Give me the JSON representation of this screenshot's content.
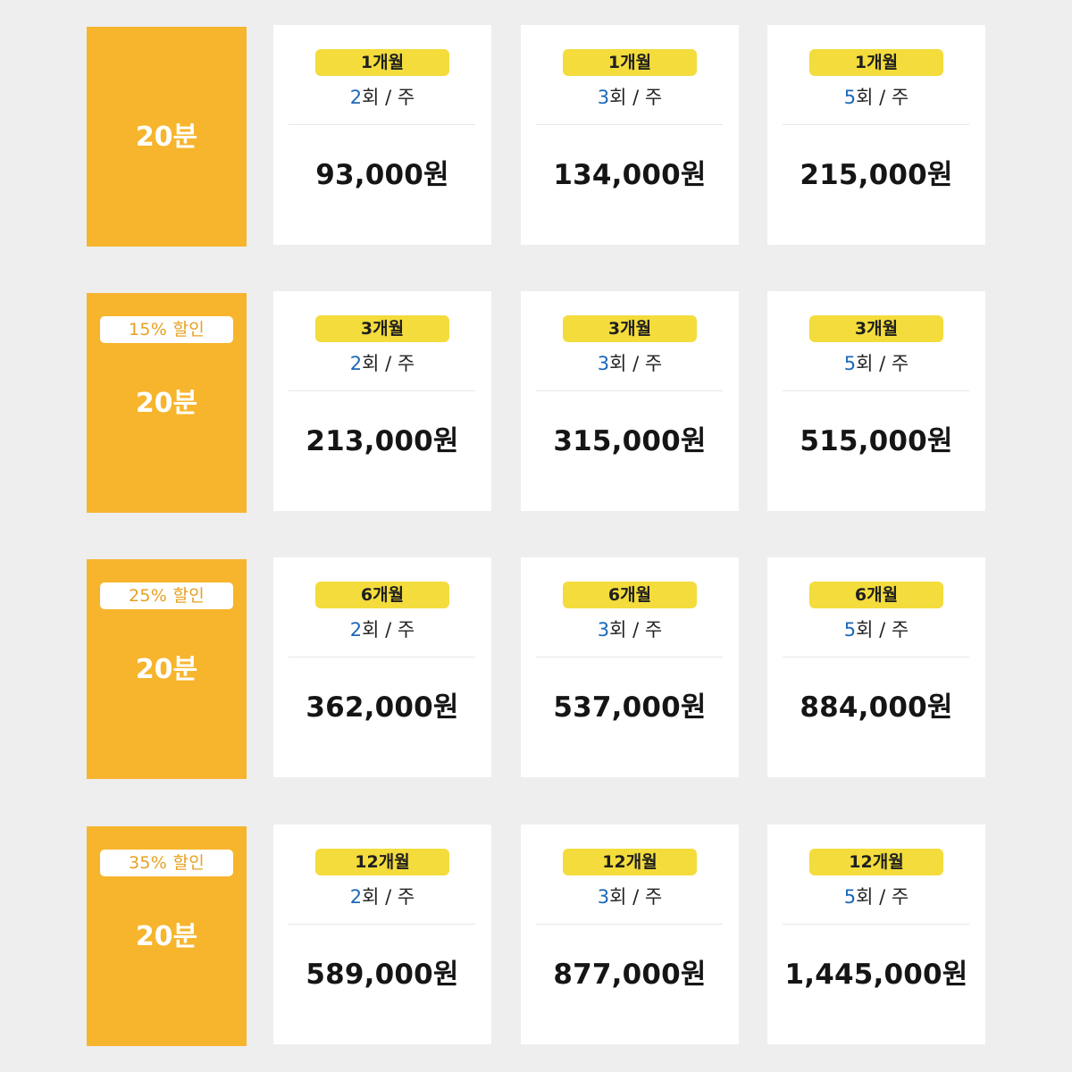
{
  "rows": [
    {
      "discount": "",
      "duration": "20분",
      "cards": [
        {
          "period": "1개월",
          "freq_num": "2",
          "freq_suffix": "회 / 주",
          "price": "93,000원"
        },
        {
          "period": "1개월",
          "freq_num": "3",
          "freq_suffix": "회 / 주",
          "price": "134,000원"
        },
        {
          "period": "1개월",
          "freq_num": "5",
          "freq_suffix": "회 / 주",
          "price": "215,000원"
        }
      ]
    },
    {
      "discount": "15% 할인",
      "duration": "20분",
      "cards": [
        {
          "period": "3개월",
          "freq_num": "2",
          "freq_suffix": "회 / 주",
          "price": "213,000원"
        },
        {
          "period": "3개월",
          "freq_num": "3",
          "freq_suffix": "회 / 주",
          "price": "315,000원"
        },
        {
          "period": "3개월",
          "freq_num": "5",
          "freq_suffix": "회 / 주",
          "price": "515,000원"
        }
      ]
    },
    {
      "discount": "25% 할인",
      "duration": "20분",
      "cards": [
        {
          "period": "6개월",
          "freq_num": "2",
          "freq_suffix": "회 / 주",
          "price": "362,000원"
        },
        {
          "period": "6개월",
          "freq_num": "3",
          "freq_suffix": "회 / 주",
          "price": "537,000원"
        },
        {
          "period": "6개월",
          "freq_num": "5",
          "freq_suffix": "회 / 주",
          "price": "884,000원"
        }
      ]
    },
    {
      "discount": "35% 할인",
      "duration": "20분",
      "cards": [
        {
          "period": "12개월",
          "freq_num": "2",
          "freq_suffix": "회 / 주",
          "price": "589,000원"
        },
        {
          "period": "12개월",
          "freq_num": "3",
          "freq_suffix": "회 / 주",
          "price": "877,000원"
        },
        {
          "period": "12개월",
          "freq_num": "5",
          "freq_suffix": "회 / 주",
          "price": "1,445,000원"
        }
      ]
    }
  ],
  "colors": {
    "background": "#eeeeee",
    "label_panel": "#f7b52d",
    "discount_text": "#e6a122",
    "period_pill": "#f3dc3c",
    "freq_number": "#1d68b8",
    "price_text": "#151515"
  }
}
